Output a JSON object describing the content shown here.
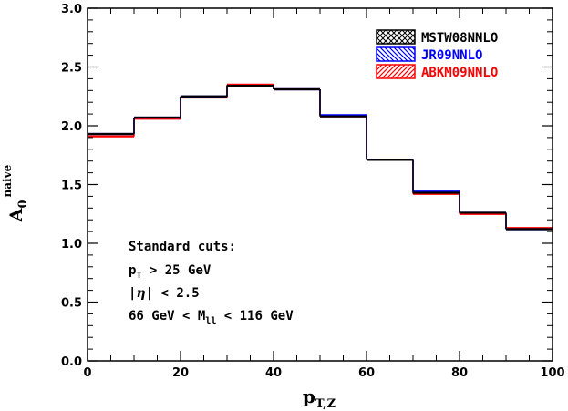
{
  "chart_data": {
    "type": "line",
    "step": true,
    "xlabel": "p",
    "xlabel_sub": "T,Z",
    "ylabel": "A",
    "ylabel_sub": "0",
    "ylabel_sup": "naive",
    "xlim": [
      0,
      100
    ],
    "ylim": [
      0.0,
      3.0
    ],
    "xticks": [
      "0",
      "20",
      "40",
      "60",
      "80",
      "100"
    ],
    "yticks": [
      "0.0",
      "0.5",
      "1.0",
      "1.5",
      "2.0",
      "2.5",
      "3.0"
    ],
    "bin_edges": [
      0,
      10,
      20,
      30,
      40,
      50,
      60,
      70,
      80,
      90,
      100
    ],
    "series": [
      {
        "name": "MSTW08NNLO",
        "color": "#000000",
        "hatch": "cross",
        "values": [
          1.93,
          2.07,
          2.25,
          2.34,
          2.31,
          2.08,
          1.71,
          1.43,
          1.26,
          1.12
        ]
      },
      {
        "name": "JR09NNLO",
        "color": "#0000ff",
        "hatch": "diag-left",
        "values": [
          1.93,
          2.07,
          2.25,
          2.34,
          2.31,
          2.09,
          1.71,
          1.44,
          1.26,
          1.12
        ]
      },
      {
        "name": "ABKM09NNLO",
        "color": "#ff0000",
        "hatch": "diag-right",
        "values": [
          1.91,
          2.06,
          2.24,
          2.35,
          2.31,
          2.08,
          1.71,
          1.42,
          1.25,
          1.13
        ]
      }
    ],
    "legend_position": "top-right",
    "annotation": {
      "title": "Standard cuts:",
      "pt_sym": "p",
      "pt_sub": "T",
      "pt_rest": " > 25 GeV",
      "eta_pre": "|",
      "eta_sym": "η",
      "eta_rest": "| < 2.5",
      "mass_pre": "66 GeV < M",
      "mass_sub": "ll",
      "mass_rest": " < 116 GeV"
    }
  }
}
